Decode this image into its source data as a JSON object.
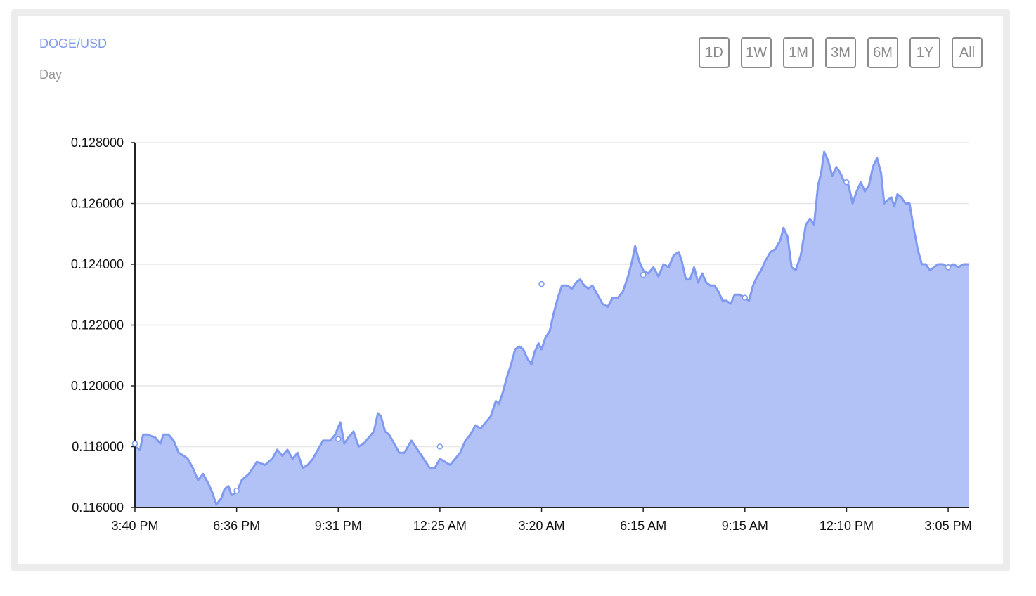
{
  "header": {
    "pair": "DOGE/USD",
    "period": "Day"
  },
  "range_buttons": [
    "1D",
    "1W",
    "1M",
    "3M",
    "6M",
    "1Y",
    "All"
  ],
  "colors": {
    "line": "#7f9af0",
    "area": "#b2c2f6",
    "label_accent": "#7f9be8"
  },
  "chart_data": {
    "type": "area",
    "title": "DOGE/USD",
    "subtitle": "Day",
    "x_tick_labels": [
      "3:40 PM",
      "6:36 PM",
      "9:31 PM",
      "12:25 AM",
      "3:20 AM",
      "6:15 AM",
      "9:15 AM",
      "12:10 PM",
      "3:05 PM"
    ],
    "y_tick_labels": [
      "0.128000",
      "0.126000",
      "0.124000",
      "0.122000",
      "0.120000",
      "0.118000",
      "0.116000"
    ],
    "y_ticks": [
      0.128,
      0.126,
      0.124,
      0.122,
      0.12,
      0.118,
      0.116
    ],
    "ylim": [
      0.116,
      0.128
    ],
    "xlim": [
      0,
      8.2
    ],
    "grid": true,
    "series": [
      {
        "values": [
          [
            0.0,
            0.118
          ],
          [
            0.05,
            0.1179
          ],
          [
            0.08,
            0.1184
          ],
          [
            0.12,
            0.1184
          ],
          [
            0.2,
            0.1183
          ],
          [
            0.25,
            0.1181
          ],
          [
            0.28,
            0.1184
          ],
          [
            0.33,
            0.1184
          ],
          [
            0.38,
            0.1182
          ],
          [
            0.43,
            0.1178
          ],
          [
            0.48,
            0.1177
          ],
          [
            0.52,
            0.1176
          ],
          [
            0.57,
            0.1173
          ],
          [
            0.62,
            0.1169
          ],
          [
            0.67,
            0.1171
          ],
          [
            0.72,
            0.1168
          ],
          [
            0.76,
            0.1165
          ],
          [
            0.8,
            0.1161
          ],
          [
            0.85,
            0.1163
          ],
          [
            0.88,
            0.1166
          ],
          [
            0.92,
            0.1167
          ],
          [
            0.95,
            0.1164
          ],
          [
            1.0,
            0.1165
          ],
          [
            1.05,
            0.1169
          ],
          [
            1.12,
            0.1171
          ],
          [
            1.2,
            0.1175
          ],
          [
            1.28,
            0.1174
          ],
          [
            1.35,
            0.1176
          ],
          [
            1.4,
            0.1179
          ],
          [
            1.45,
            0.1177
          ],
          [
            1.5,
            0.1179
          ],
          [
            1.55,
            0.1176
          ],
          [
            1.6,
            0.1178
          ],
          [
            1.65,
            0.1173
          ],
          [
            1.7,
            0.1174
          ],
          [
            1.75,
            0.1176
          ],
          [
            1.8,
            0.1179
          ],
          [
            1.85,
            0.1182
          ],
          [
            1.92,
            0.1182
          ],
          [
            1.97,
            0.1184
          ],
          [
            2.02,
            0.1188
          ],
          [
            2.06,
            0.1181
          ],
          [
            2.1,
            0.1183
          ],
          [
            2.15,
            0.1185
          ],
          [
            2.2,
            0.118
          ],
          [
            2.25,
            0.1181
          ],
          [
            2.3,
            0.1183
          ],
          [
            2.35,
            0.1185
          ],
          [
            2.39,
            0.1191
          ],
          [
            2.42,
            0.119
          ],
          [
            2.46,
            0.1185
          ],
          [
            2.5,
            0.1184
          ],
          [
            2.55,
            0.1181
          ],
          [
            2.6,
            0.1178
          ],
          [
            2.65,
            0.1178
          ],
          [
            2.72,
            0.1182
          ],
          [
            2.78,
            0.1179
          ],
          [
            2.82,
            0.1177
          ],
          [
            2.86,
            0.1175
          ],
          [
            2.9,
            0.1173
          ],
          [
            2.95,
            0.1173
          ],
          [
            3.0,
            0.1176
          ],
          [
            3.05,
            0.1175
          ],
          [
            3.1,
            0.1174
          ],
          [
            3.15,
            0.1176
          ],
          [
            3.2,
            0.1178
          ],
          [
            3.25,
            0.1182
          ],
          [
            3.3,
            0.1184
          ],
          [
            3.35,
            0.1187
          ],
          [
            3.4,
            0.1186
          ],
          [
            3.45,
            0.1188
          ],
          [
            3.5,
            0.119
          ],
          [
            3.55,
            0.1195
          ],
          [
            3.58,
            0.1194
          ],
          [
            3.62,
            0.1198
          ],
          [
            3.66,
            0.1203
          ],
          [
            3.7,
            0.1207
          ],
          [
            3.74,
            0.1212
          ],
          [
            3.78,
            0.1213
          ],
          [
            3.82,
            0.1212
          ],
          [
            3.86,
            0.1209
          ],
          [
            3.9,
            0.1207
          ],
          [
            3.93,
            0.1211
          ],
          [
            3.97,
            0.1214
          ],
          [
            4.0,
            0.1212
          ],
          [
            4.04,
            0.1216
          ],
          [
            4.08,
            0.1218
          ],
          [
            4.12,
            0.1224
          ],
          [
            4.16,
            0.1229
          ],
          [
            4.2,
            0.1233
          ],
          [
            4.25,
            0.1233
          ],
          [
            4.3,
            0.1232
          ],
          [
            4.34,
            0.1234
          ],
          [
            4.38,
            0.1235
          ],
          [
            4.42,
            0.1233
          ],
          [
            4.46,
            0.1232
          ],
          [
            4.5,
            0.1233
          ],
          [
            4.55,
            0.123
          ],
          [
            4.6,
            0.1227
          ],
          [
            4.65,
            0.1226
          ],
          [
            4.7,
            0.1229
          ],
          [
            4.75,
            0.1229
          ],
          [
            4.8,
            0.1231
          ],
          [
            4.85,
            0.1236
          ],
          [
            4.89,
            0.1241
          ],
          [
            4.92,
            0.1246
          ],
          [
            4.96,
            0.1241
          ],
          [
            5.0,
            0.1238
          ],
          [
            5.05,
            0.1237
          ],
          [
            5.1,
            0.1239
          ],
          [
            5.15,
            0.1236
          ],
          [
            5.2,
            0.124
          ],
          [
            5.25,
            0.1239
          ],
          [
            5.3,
            0.1243
          ],
          [
            5.35,
            0.1244
          ],
          [
            5.38,
            0.1241
          ],
          [
            5.42,
            0.1235
          ],
          [
            5.46,
            0.1235
          ],
          [
            5.5,
            0.1239
          ],
          [
            5.54,
            0.1234
          ],
          [
            5.58,
            0.1237
          ],
          [
            5.62,
            0.1234
          ],
          [
            5.66,
            0.1233
          ],
          [
            5.7,
            0.1233
          ],
          [
            5.74,
            0.1231
          ],
          [
            5.78,
            0.1228
          ],
          [
            5.82,
            0.1228
          ],
          [
            5.86,
            0.1227
          ],
          [
            5.9,
            0.123
          ],
          [
            5.95,
            0.123
          ],
          [
            6.0,
            0.1229
          ],
          [
            6.04,
            0.1228
          ],
          [
            6.08,
            0.1233
          ],
          [
            6.12,
            0.1236
          ],
          [
            6.16,
            0.1238
          ],
          [
            6.2,
            0.1241
          ],
          [
            6.25,
            0.1244
          ],
          [
            6.3,
            0.1245
          ],
          [
            6.35,
            0.1248
          ],
          [
            6.38,
            0.1252
          ],
          [
            6.42,
            0.1249
          ],
          [
            6.46,
            0.1239
          ],
          [
            6.5,
            0.1238
          ],
          [
            6.55,
            0.1243
          ],
          [
            6.6,
            0.1253
          ],
          [
            6.64,
            0.1255
          ],
          [
            6.68,
            0.1253
          ],
          [
            6.72,
            0.1266
          ],
          [
            6.75,
            0.127
          ],
          [
            6.78,
            0.1277
          ],
          [
            6.82,
            0.1274
          ],
          [
            6.86,
            0.1269
          ],
          [
            6.9,
            0.1272
          ],
          [
            6.94,
            0.127
          ],
          [
            6.98,
            0.1267
          ],
          [
            7.02,
            0.1266
          ],
          [
            7.06,
            0.126
          ],
          [
            7.1,
            0.1264
          ],
          [
            7.14,
            0.1267
          ],
          [
            7.18,
            0.1264
          ],
          [
            7.22,
            0.1266
          ],
          [
            7.26,
            0.1272
          ],
          [
            7.3,
            0.1275
          ],
          [
            7.34,
            0.127
          ],
          [
            7.37,
            0.126
          ],
          [
            7.4,
            0.1261
          ],
          [
            7.44,
            0.1262
          ],
          [
            7.47,
            0.1259
          ],
          [
            7.5,
            0.1263
          ],
          [
            7.54,
            0.1262
          ],
          [
            7.58,
            0.126
          ],
          [
            7.62,
            0.126
          ],
          [
            7.66,
            0.1252
          ],
          [
            7.7,
            0.1245
          ],
          [
            7.74,
            0.124
          ],
          [
            7.78,
            0.124
          ],
          [
            7.82,
            0.1238
          ],
          [
            7.86,
            0.1239
          ],
          [
            7.9,
            0.124
          ],
          [
            7.95,
            0.124
          ],
          [
            8.0,
            0.1239
          ],
          [
            8.05,
            0.124
          ],
          [
            8.1,
            0.1239
          ],
          [
            8.15,
            0.124
          ],
          [
            8.2,
            0.124
          ]
        ]
      }
    ],
    "markers": [
      [
        0.0,
        0.1181
      ],
      [
        1.0,
        0.11655
      ],
      [
        2.0,
        0.11825
      ],
      [
        3.0,
        0.118
      ],
      [
        4.0,
        0.12335
      ],
      [
        5.0,
        0.12365
      ],
      [
        6.0,
        0.1229
      ],
      [
        7.0,
        0.1267
      ],
      [
        8.0,
        0.1239
      ]
    ]
  }
}
